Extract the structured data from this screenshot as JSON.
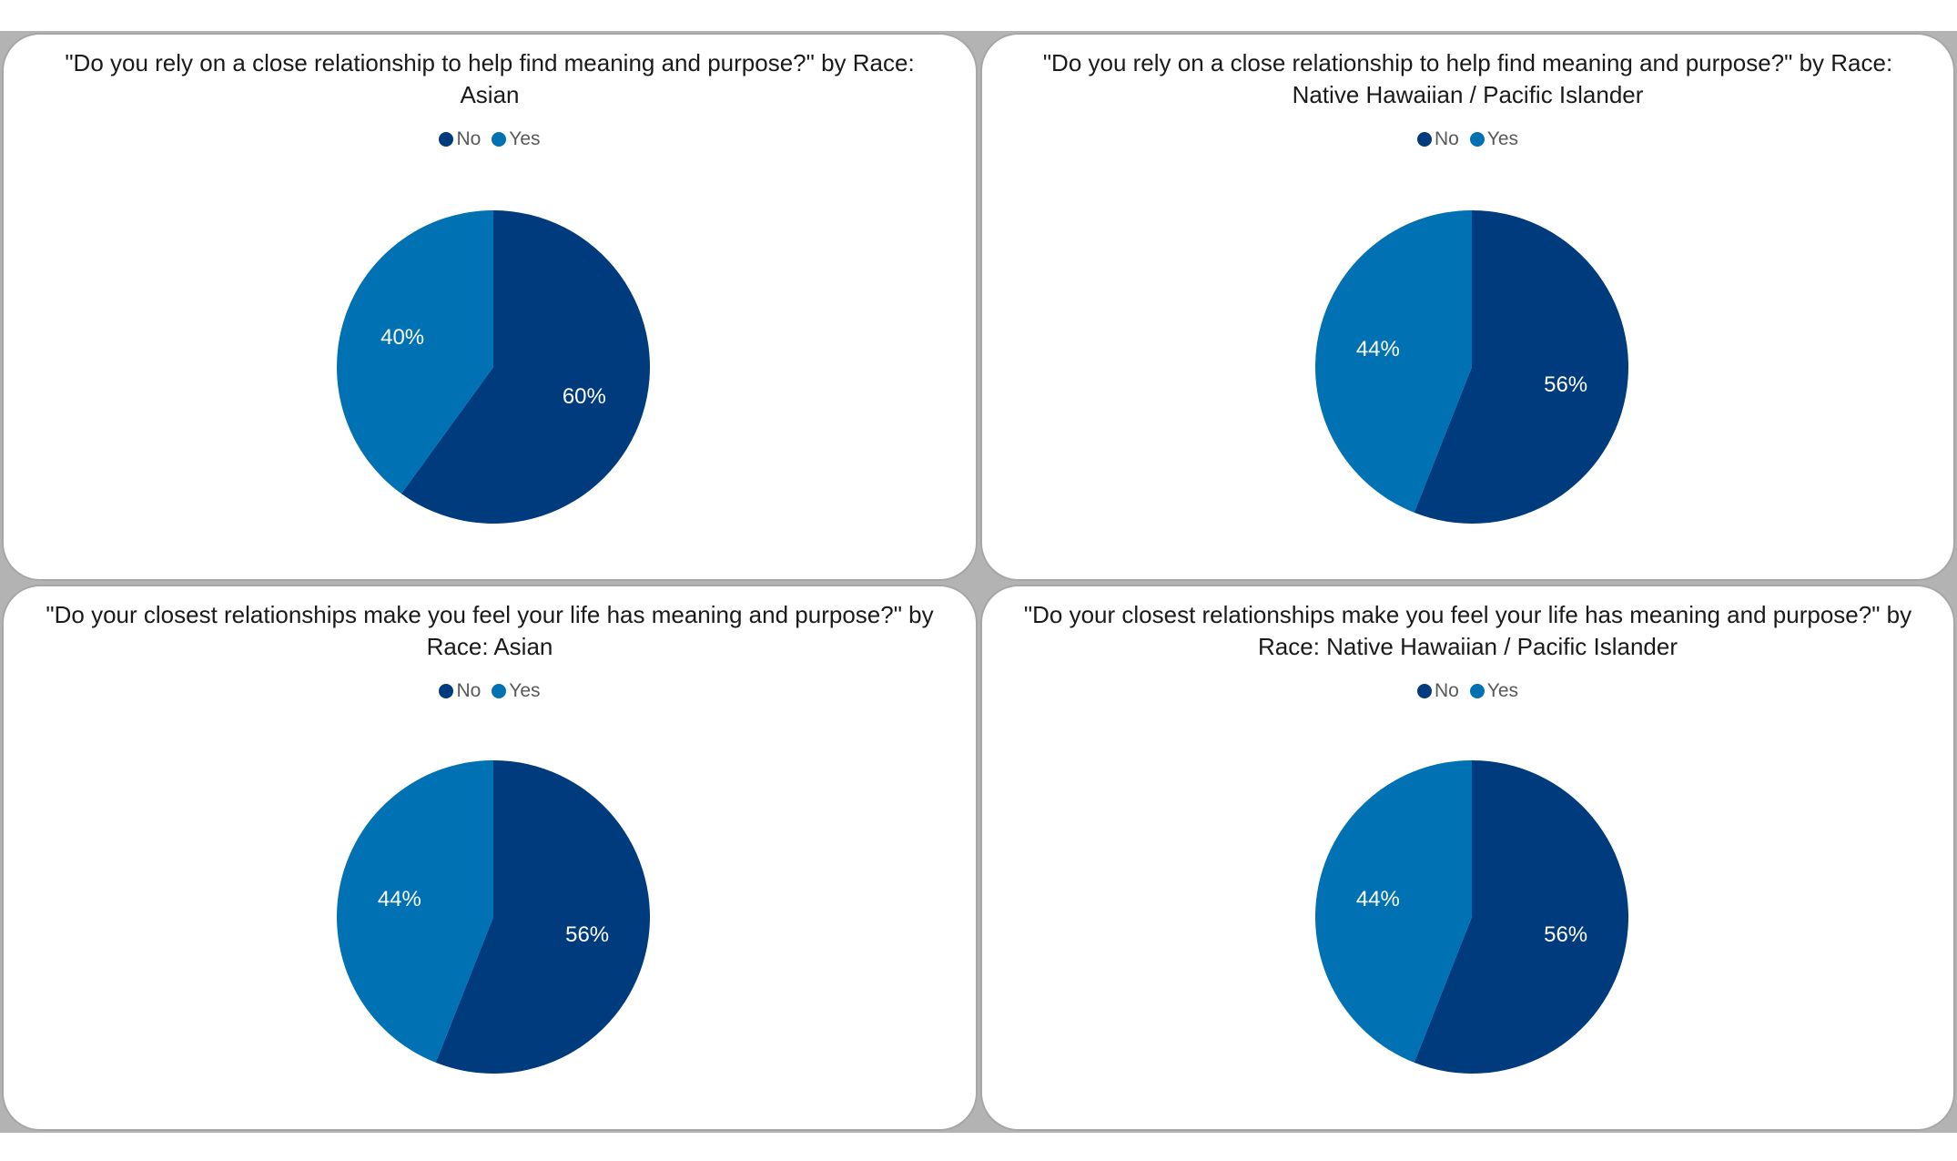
{
  "colors": {
    "no": "#003b7e",
    "yes": "#0071b2"
  },
  "chart_data": [
    {
      "type": "pie",
      "title_lines": [
        "\"Do you rely on a close relationship to help find meaning and purpose?\" by Race:",
        "Asian"
      ],
      "legend": [
        "No",
        "Yes"
      ],
      "slices": [
        {
          "label": "No",
          "value": 60,
          "display": "60%"
        },
        {
          "label": "Yes",
          "value": 40,
          "display": "40%"
        }
      ]
    },
    {
      "type": "pie",
      "title_lines": [
        "\"Do you rely on a close relationship to help find meaning and purpose?\" by Race:",
        "Native Hawaiian / Pacific Islander"
      ],
      "legend": [
        "No",
        "Yes"
      ],
      "slices": [
        {
          "label": "No",
          "value": 56,
          "display": "56%"
        },
        {
          "label": "Yes",
          "value": 44,
          "display": "44%"
        }
      ]
    },
    {
      "type": "pie",
      "title_lines": [
        "\"Do your closest relationships make you feel your life has meaning and purpose?\" by",
        "Race: Asian"
      ],
      "legend": [
        "No",
        "Yes"
      ],
      "slices": [
        {
          "label": "No",
          "value": 56,
          "display": "56%"
        },
        {
          "label": "Yes",
          "value": 44,
          "display": "44%"
        }
      ]
    },
    {
      "type": "pie",
      "title_lines": [
        "\"Do your closest relationships make you feel your life has meaning and purpose?\" by",
        "Race: Native Hawaiian / Pacific Islander"
      ],
      "legend": [
        "No",
        "Yes"
      ],
      "slices": [
        {
          "label": "No",
          "value": 56,
          "display": "56%"
        },
        {
          "label": "Yes",
          "value": 44,
          "display": "44%"
        }
      ]
    }
  ]
}
